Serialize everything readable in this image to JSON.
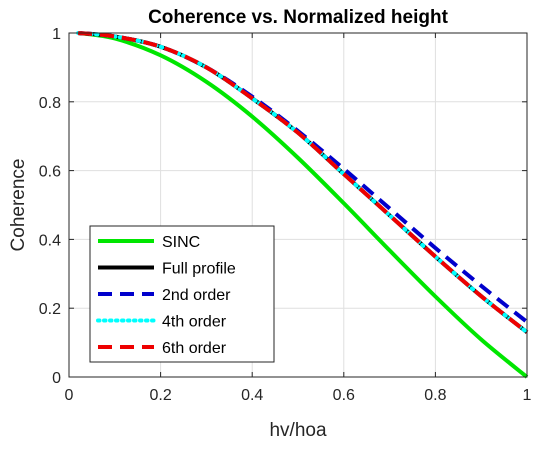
{
  "chart_data": {
    "type": "line",
    "title": "Coherence vs. Normalized height",
    "xlabel": "hv/hoa",
    "ylabel": "Coherence",
    "xlim": [
      0,
      1
    ],
    "ylim": [
      0,
      1
    ],
    "xticks": [
      0,
      0.2,
      0.4,
      0.6,
      0.8,
      1
    ],
    "yticks": [
      0,
      0.2,
      0.4,
      0.6,
      0.8,
      1
    ],
    "xtick_labels": [
      "0",
      "0.2",
      "0.4",
      "0.6",
      "0.8",
      "1"
    ],
    "ytick_labels": [
      "0",
      "0.2",
      "0.4",
      "0.6",
      "0.8",
      "1"
    ],
    "grid": true,
    "legend_position": "lower-left",
    "x": [
      0.02,
      0.1,
      0.2,
      0.3,
      0.4,
      0.5,
      0.6,
      0.7,
      0.8,
      0.9,
      1.0
    ],
    "series": [
      {
        "name": "SINC",
        "color": "#00e600",
        "style": "solid",
        "values": [
          1.0,
          0.984,
          0.935,
          0.858,
          0.757,
          0.637,
          0.505,
          0.368,
          0.234,
          0.109,
          0.0
        ]
      },
      {
        "name": "Full profile",
        "color": "#000000",
        "style": "solid",
        "values": [
          1.0,
          0.99,
          0.96,
          0.9,
          0.81,
          0.71,
          0.59,
          0.47,
          0.35,
          0.235,
          0.13
        ]
      },
      {
        "name": "2nd order",
        "color": "#0000cc",
        "style": "dashed",
        "values": [
          1.0,
          0.99,
          0.96,
          0.9,
          0.815,
          0.715,
          0.605,
          0.49,
          0.375,
          0.265,
          0.16
        ]
      },
      {
        "name": "4th order",
        "color": "#00ffff",
        "style": "dotted",
        "values": [
          1.0,
          0.99,
          0.96,
          0.9,
          0.81,
          0.71,
          0.59,
          0.47,
          0.35,
          0.235,
          0.13
        ]
      },
      {
        "name": "6th order",
        "color": "#ee0000",
        "style": "dashed",
        "values": [
          1.0,
          0.99,
          0.96,
          0.9,
          0.81,
          0.71,
          0.59,
          0.47,
          0.35,
          0.235,
          0.13
        ]
      }
    ]
  }
}
